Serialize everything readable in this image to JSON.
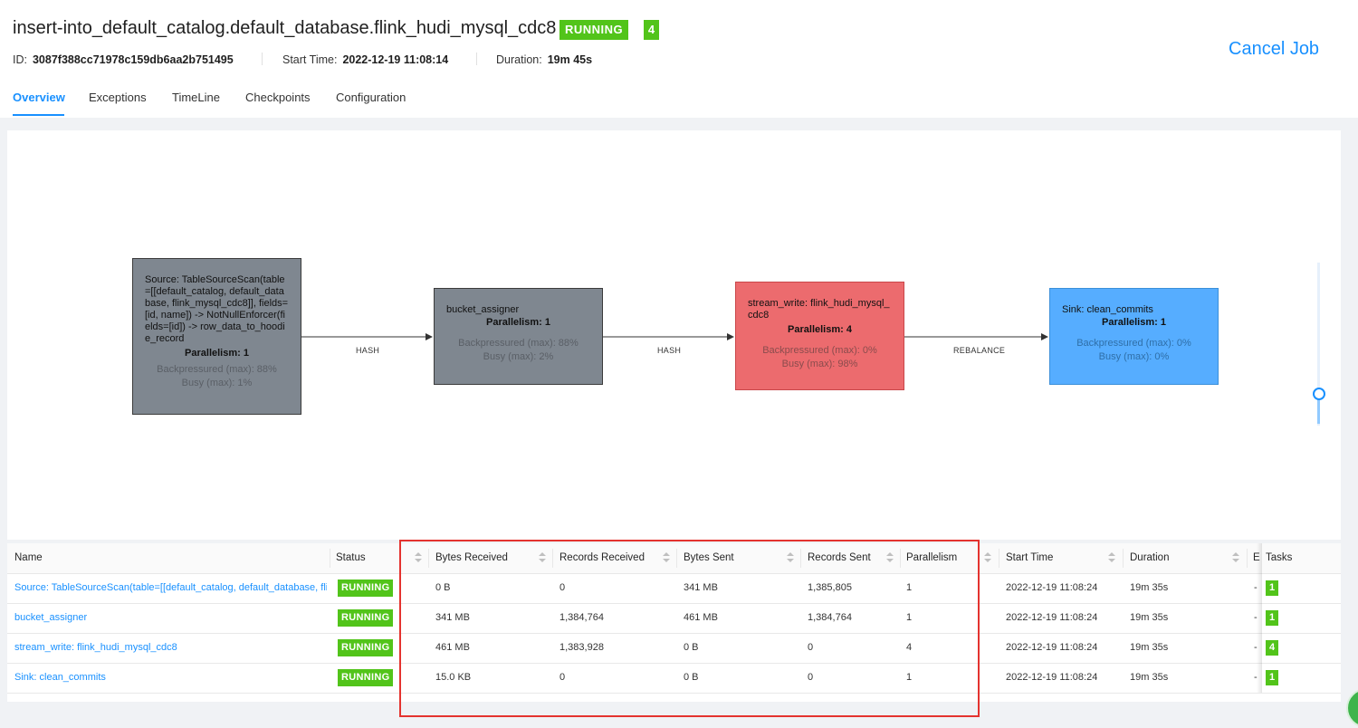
{
  "job": {
    "title": "insert-into_default_catalog.default_database.flink_hudi_mysql_cdc8",
    "status": "RUNNING",
    "task_count": "4",
    "id_label": "ID:",
    "id_value": "3087f388cc71978c159db6aa2b751495",
    "start_label": "Start Time:",
    "start_value": "2022-12-19 11:08:14",
    "duration_label": "Duration:",
    "duration_value": "19m 45s",
    "cancel_label": "Cancel Job"
  },
  "tabs": [
    "Overview",
    "Exceptions",
    "TimeLine",
    "Checkpoints",
    "Configuration"
  ],
  "graph": {
    "nodes": [
      {
        "name": "Source: TableSourceScan(table=[[default_catalog, default_database, flink_mysql_cdc8]], fields=[id, name]) -> NotNullEnforcer(fields=[id]) -> row_data_to_hoodie_record",
        "parallelism": "Parallelism: 1",
        "backpressure": "Backpressured (max): 88%",
        "busy": "Busy (max): 1%"
      },
      {
        "name": "bucket_assigner",
        "parallelism": "Parallelism: 1",
        "backpressure": "Backpressured (max): 88%",
        "busy": "Busy (max): 2%"
      },
      {
        "name": "stream_write: flink_hudi_mysql_cdc8",
        "parallelism": "Parallelism: 4",
        "backpressure": "Backpressured (max): 0%",
        "busy": "Busy (max): 98%"
      },
      {
        "name": "Sink: clean_commits",
        "parallelism": "Parallelism: 1",
        "backpressure": "Backpressured (max): 0%",
        "busy": "Busy (max): 0%"
      }
    ],
    "edges": [
      "HASH",
      "HASH",
      "REBALANCE"
    ],
    "colors": {
      "normal": "#7f8790",
      "busy": "#ec6b6e",
      "idle": "#56adff"
    }
  },
  "table": {
    "columns": [
      "Name",
      "Status",
      "",
      "Bytes Received",
      "Records Received",
      "Bytes Sent",
      "Records Sent",
      "Parallelism",
      "",
      "Start Time",
      "Duration",
      "E",
      "Tasks"
    ],
    "rows": [
      {
        "name": "Source: TableSourceScan(table=[[default_catalog, default_database, fli...",
        "status": "RUNNING",
        "bytes_received": "0 B",
        "records_received": "0",
        "bytes_sent": "341 MB",
        "records_sent": "1,385,805",
        "parallelism": "1",
        "start_time": "2022-12-19 11:08:24",
        "duration": "19m 35s",
        "end": "-",
        "tasks": "1"
      },
      {
        "name": "bucket_assigner",
        "status": "RUNNING",
        "bytes_received": "341 MB",
        "records_received": "1,384,764",
        "bytes_sent": "461 MB",
        "records_sent": "1,384,764",
        "parallelism": "1",
        "start_time": "2022-12-19 11:08:24",
        "duration": "19m 35s",
        "end": "-",
        "tasks": "1"
      },
      {
        "name": "stream_write: flink_hudi_mysql_cdc8",
        "status": "RUNNING",
        "bytes_received": "461 MB",
        "records_received": "1,383,928",
        "bytes_sent": "0 B",
        "records_sent": "0",
        "parallelism": "4",
        "start_time": "2022-12-19 11:08:24",
        "duration": "19m 35s",
        "end": "-",
        "tasks": "4"
      },
      {
        "name": "Sink: clean_commits",
        "status": "RUNNING",
        "bytes_received": "15.0 KB",
        "records_received": "0",
        "bytes_sent": "0 B",
        "records_sent": "0",
        "parallelism": "1",
        "start_time": "2022-12-19 11:08:24",
        "duration": "19m 35s",
        "end": "-",
        "tasks": "1"
      }
    ]
  },
  "resize_handle": "..."
}
